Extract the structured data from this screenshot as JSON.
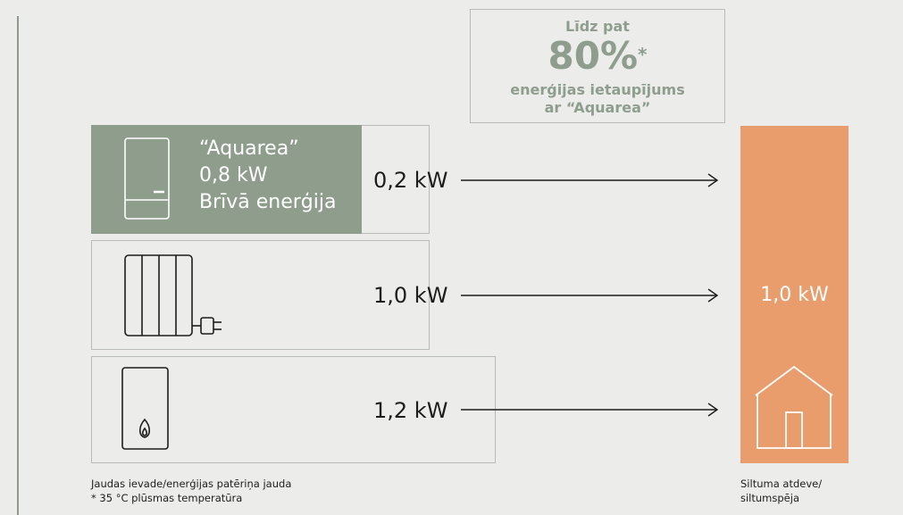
{
  "callout": {
    "line1": "Līdz pat",
    "percent": "80%",
    "asterisk": "*",
    "line3": "enerģijas ietaupījums",
    "line4": "ar “Aquarea”"
  },
  "sources": [
    {
      "lines": [
        "“Aquarea”",
        "0,8 kW",
        "Brīvā enerģija"
      ],
      "power_label": "0,2 kW",
      "icon": "heat-pump-unit-icon"
    },
    {
      "lines": [],
      "power_label": "1,0 kW",
      "icon": "electric-radiator-icon"
    },
    {
      "lines": [],
      "power_label": "1,2 kW",
      "icon": "gas-boiler-icon"
    }
  ],
  "output": {
    "label": "1,0 kW",
    "icon": "house-icon"
  },
  "footnotes": {
    "left_line1": "Jaudas ievade/enerģijas patēriņa jauda",
    "left_line2": "* 35 °C plūsmas temperatūra",
    "right_line1": "Siltuma atdeve/",
    "right_line2": "siltumspēja"
  },
  "colors": {
    "green": "#8f9d8d",
    "orange": "#e99c6c",
    "background": "#ecedeb",
    "callout_text": "#8e9d8e"
  }
}
